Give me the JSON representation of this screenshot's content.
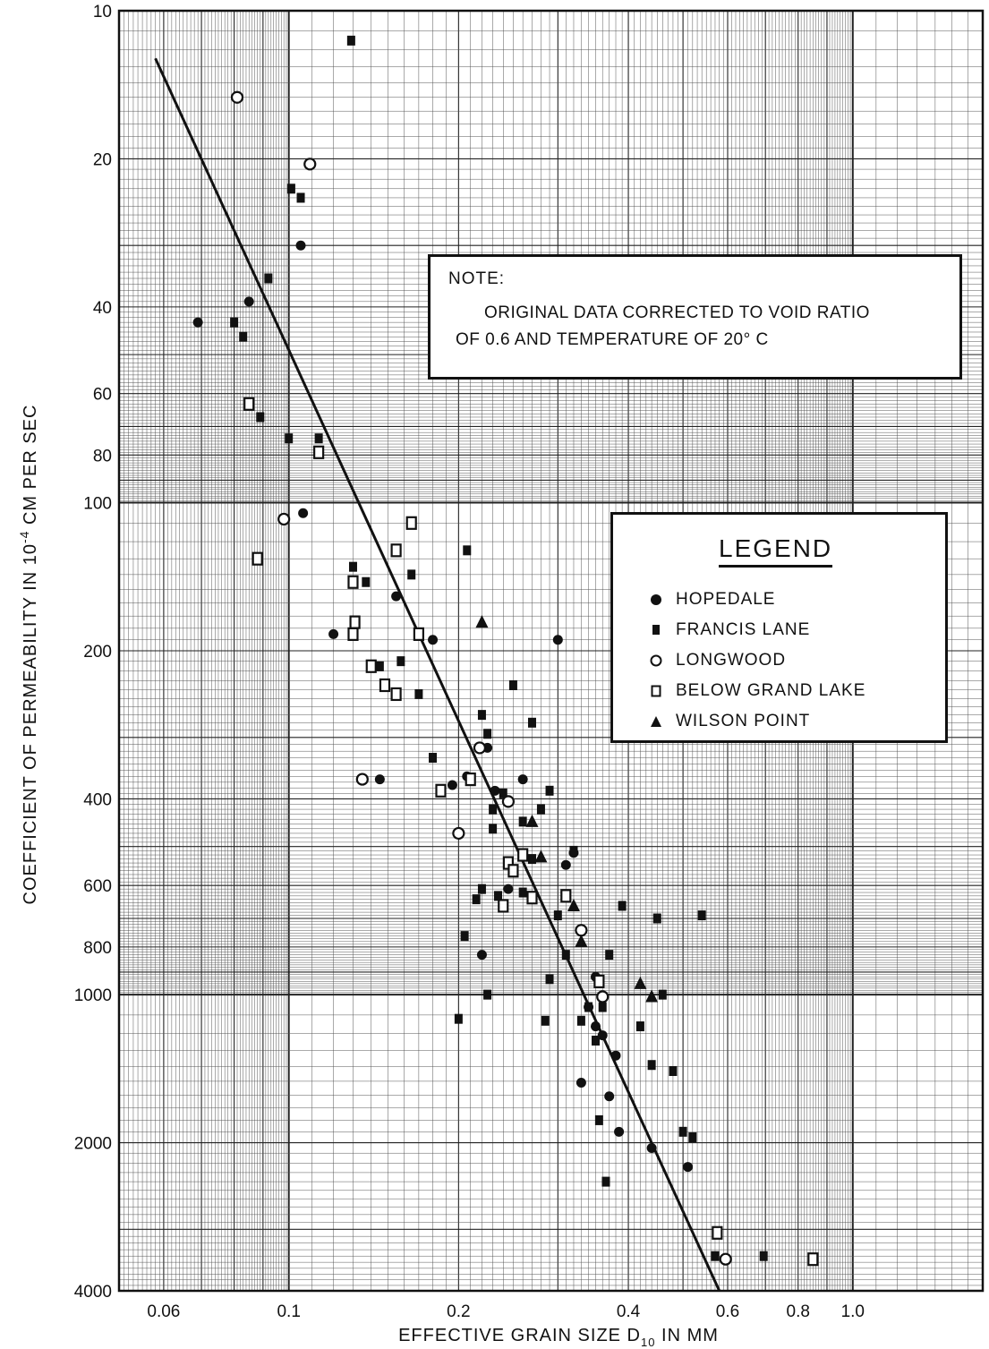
{
  "note": {
    "heading": "NOTE:",
    "line1": "ORIGINAL DATA CORRECTED TO VOID RATIO",
    "line2": "OF 0.6 AND TEMPERATURE OF 20° C"
  },
  "legend": {
    "title": "LEGEND",
    "items": [
      {
        "label": "HOPEDALE",
        "marker": "filled-circle"
      },
      {
        "label": "FRANCIS LANE",
        "marker": "filled-square"
      },
      {
        "label": "LONGWOOD",
        "marker": "open-circle"
      },
      {
        "label": "BELOW GRAND LAKE",
        "marker": "open-square"
      },
      {
        "label": "WILSON POINT",
        "marker": "filled-triangle"
      }
    ]
  },
  "chart_data": {
    "type": "scatter",
    "title": "",
    "xlabel": "EFFECTIVE GRAIN SIZE D10 IN MM",
    "ylabel": "COEFFICIENT OF PERMEABILITY IN 10⁻⁴ CM PER SEC",
    "x_scale": "log",
    "y_scale": "log",
    "y_inverted": true,
    "xlim": [
      0.05,
      1.7
    ],
    "ylim": [
      10,
      4000
    ],
    "x_tick_labels": [
      "0.06",
      "0.1",
      "0.2",
      "0.4",
      "0.6",
      "0.8",
      "1.0"
    ],
    "x_tick_values": [
      0.06,
      0.1,
      0.2,
      0.4,
      0.6,
      0.8,
      1.0
    ],
    "y_tick_labels": [
      "10",
      "20",
      "40",
      "60",
      "80",
      "100",
      "200",
      "400",
      "600",
      "800",
      "1000",
      "2000",
      "4000"
    ],
    "y_tick_values": [
      10,
      20,
      40,
      60,
      80,
      100,
      200,
      400,
      600,
      800,
      1000,
      2000,
      4000
    ],
    "grid": true,
    "colors": {
      "ink": "#111111",
      "grid_major": "#222222",
      "grid_minor": "#555555",
      "background": "#ffffff"
    },
    "trend_line": [
      [
        0.058,
        12.5
      ],
      [
        0.58,
        4000
      ]
    ],
    "series": [
      {
        "name": "HOPEDALE",
        "marker": "filled-circle",
        "points": [
          [
            0.069,
            43
          ],
          [
            0.085,
            39
          ],
          [
            0.105,
            30
          ],
          [
            0.106,
            105
          ],
          [
            0.12,
            185
          ],
          [
            0.145,
            365
          ],
          [
            0.155,
            155
          ],
          [
            0.18,
            190
          ],
          [
            0.195,
            375
          ],
          [
            0.207,
            360
          ],
          [
            0.225,
            315
          ],
          [
            0.232,
            385
          ],
          [
            0.26,
            365
          ],
          [
            0.245,
            610
          ],
          [
            0.3,
            190
          ],
          [
            0.31,
            545
          ],
          [
            0.32,
            515
          ],
          [
            0.33,
            1510
          ],
          [
            0.34,
            1060
          ],
          [
            0.35,
            920
          ],
          [
            0.36,
            1210
          ],
          [
            0.37,
            1610
          ],
          [
            0.38,
            1330
          ],
          [
            0.385,
            1900
          ],
          [
            0.44,
            2050
          ],
          [
            0.51,
            2240
          ],
          [
            0.22,
            830
          ],
          [
            0.35,
            1160
          ]
        ]
      },
      {
        "name": "FRANCIS LANE",
        "marker": "filled-square",
        "points": [
          [
            0.129,
            11.5
          ],
          [
            0.101,
            23
          ],
          [
            0.105,
            24
          ],
          [
            0.08,
            43
          ],
          [
            0.092,
            35
          ],
          [
            0.083,
            46
          ],
          [
            0.089,
            67
          ],
          [
            0.1,
            74
          ],
          [
            0.113,
            74
          ],
          [
            0.13,
            135
          ],
          [
            0.137,
            145
          ],
          [
            0.145,
            215
          ],
          [
            0.158,
            210
          ],
          [
            0.165,
            140
          ],
          [
            0.17,
            245
          ],
          [
            0.18,
            330
          ],
          [
            0.207,
            125
          ],
          [
            0.22,
            270
          ],
          [
            0.225,
            295
          ],
          [
            0.23,
            420
          ],
          [
            0.24,
            390
          ],
          [
            0.25,
            235
          ],
          [
            0.26,
            445
          ],
          [
            0.27,
            280
          ],
          [
            0.28,
            420
          ],
          [
            0.29,
            385
          ],
          [
            0.23,
            460
          ],
          [
            0.2,
            1120
          ],
          [
            0.205,
            760
          ],
          [
            0.215,
            640
          ],
          [
            0.22,
            610
          ],
          [
            0.225,
            1000
          ],
          [
            0.235,
            630
          ],
          [
            0.26,
            620
          ],
          [
            0.27,
            530
          ],
          [
            0.285,
            1130
          ],
          [
            0.29,
            930
          ],
          [
            0.3,
            690
          ],
          [
            0.31,
            830
          ],
          [
            0.32,
            510
          ],
          [
            0.33,
            1130
          ],
          [
            0.34,
            1060
          ],
          [
            0.35,
            1240
          ],
          [
            0.36,
            1060
          ],
          [
            0.37,
            830
          ],
          [
            0.39,
            660
          ],
          [
            0.42,
            1160
          ],
          [
            0.45,
            700
          ],
          [
            0.44,
            1390
          ],
          [
            0.46,
            1000
          ],
          [
            0.48,
            1430
          ],
          [
            0.5,
            1900
          ],
          [
            0.52,
            1950
          ],
          [
            0.54,
            690
          ],
          [
            0.57,
            3400
          ],
          [
            0.695,
            3400
          ],
          [
            0.355,
            1800
          ],
          [
            0.365,
            2400
          ]
        ]
      },
      {
        "name": "LONGWOOD",
        "marker": "open-circle",
        "points": [
          [
            0.081,
            15
          ],
          [
            0.109,
            20.5
          ],
          [
            0.098,
            108
          ],
          [
            0.135,
            365
          ],
          [
            0.218,
            315
          ],
          [
            0.245,
            405
          ],
          [
            0.33,
            740
          ],
          [
            0.36,
            1010
          ],
          [
            0.595,
            3450
          ],
          [
            0.2,
            470
          ]
        ]
      },
      {
        "name": "BELOW GRAND LAKE",
        "marker": "open-square",
        "points": [
          [
            0.085,
            63
          ],
          [
            0.113,
            79
          ],
          [
            0.088,
            130
          ],
          [
            0.13,
            145
          ],
          [
            0.13,
            185
          ],
          [
            0.131,
            175
          ],
          [
            0.14,
            215
          ],
          [
            0.148,
            235
          ],
          [
            0.155,
            245
          ],
          [
            0.165,
            110
          ],
          [
            0.155,
            125
          ],
          [
            0.17,
            185
          ],
          [
            0.186,
            385
          ],
          [
            0.21,
            365
          ],
          [
            0.245,
            540
          ],
          [
            0.25,
            560
          ],
          [
            0.26,
            520
          ],
          [
            0.27,
            635
          ],
          [
            0.31,
            630
          ],
          [
            0.355,
            940
          ],
          [
            0.575,
            3050
          ],
          [
            0.85,
            3450
          ],
          [
            0.24,
            660
          ]
        ]
      },
      {
        "name": "WILSON POINT",
        "marker": "filled-triangle",
        "points": [
          [
            0.22,
            175
          ],
          [
            0.27,
            445
          ],
          [
            0.28,
            525
          ],
          [
            0.32,
            660
          ],
          [
            0.33,
            780
          ],
          [
            0.42,
            950
          ],
          [
            0.44,
            1010
          ]
        ]
      }
    ]
  }
}
